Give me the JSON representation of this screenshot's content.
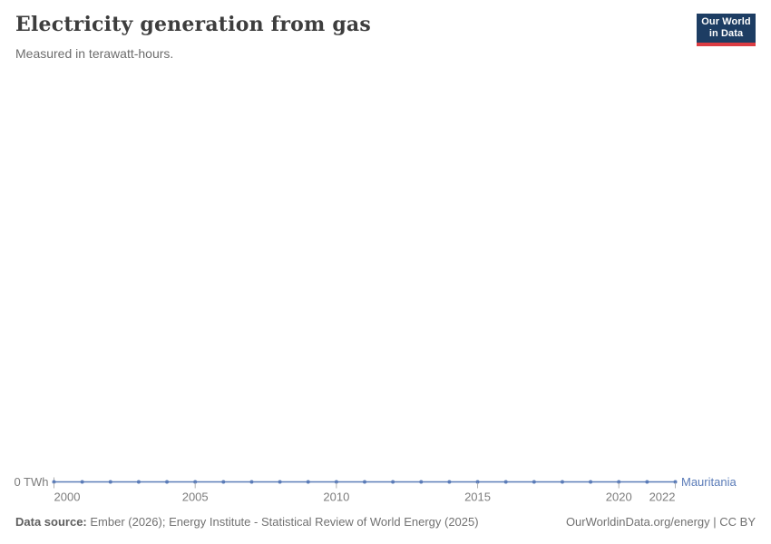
{
  "header": {
    "title": "Electricity generation from gas",
    "subtitle": "Measured in terawatt-hours.",
    "logo": {
      "line1": "Our World",
      "line2": "in Data"
    }
  },
  "chart_data": {
    "type": "line",
    "title": "Electricity generation from gas",
    "subtitle": "Measured in terawatt-hours.",
    "x": [
      2000,
      2001,
      2002,
      2003,
      2004,
      2005,
      2006,
      2007,
      2008,
      2009,
      2010,
      2011,
      2012,
      2013,
      2014,
      2015,
      2016,
      2017,
      2018,
      2019,
      2020,
      2021,
      2022
    ],
    "series": [
      {
        "name": "Mauritania",
        "color": "#5b7cb8",
        "values": [
          0,
          0,
          0,
          0,
          0,
          0,
          0,
          0,
          0,
          0,
          0,
          0,
          0,
          0,
          0,
          0,
          0,
          0,
          0,
          0,
          0,
          0,
          0
        ]
      }
    ],
    "x_ticks": [
      2000,
      2005,
      2010,
      2015,
      2020,
      2022
    ],
    "y_axis_label": "0 TWh",
    "ylim": [
      0,
      0
    ],
    "grid": false,
    "legend_position": "end-of-line"
  },
  "footer": {
    "source_label": "Data source:",
    "source_text": " Ember (2026); Energy Institute - Statistical Review of World Energy (2025)",
    "link_text": "OurWorldinData.org/energy | CC BY"
  },
  "colors": {
    "series_blue": "#5b7cb8",
    "logo_navy": "#1d3d63",
    "logo_red": "#dc3d43",
    "axis_gray": "#7c7c7c",
    "tick_gray": "#b0b0b0"
  }
}
